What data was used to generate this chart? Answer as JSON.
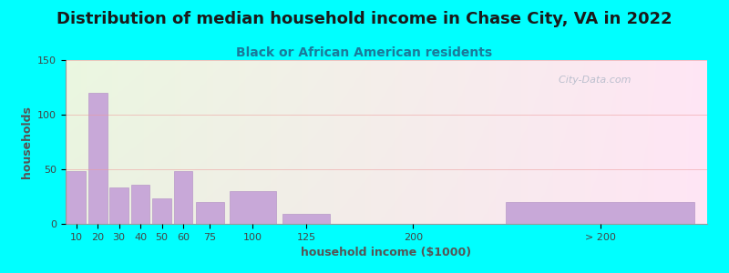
{
  "title": "Distribution of median household income in Chase City, VA in 2022",
  "subtitle": "Black or African American residents",
  "xlabel": "household income ($1000)",
  "ylabel": "households",
  "background_outer": "#00FFFF",
  "bar_color": "#c8a8d8",
  "bar_edge_color": "#b898c8",
  "title_fontsize": 13,
  "subtitle_fontsize": 10,
  "axis_label_fontsize": 9,
  "tick_fontsize": 8,
  "ylim": [
    0,
    150
  ],
  "yticks": [
    0,
    50,
    100,
    150
  ],
  "watermark": "  City-Data.com",
  "brackets": [
    [
      0,
      10,
      "10"
    ],
    [
      10,
      10,
      "20"
    ],
    [
      20,
      10,
      "30"
    ],
    [
      30,
      10,
      "40"
    ],
    [
      40,
      10,
      "50"
    ],
    [
      50,
      10,
      "60"
    ],
    [
      60,
      15,
      "75"
    ],
    [
      75,
      25,
      "100"
    ],
    [
      100,
      25,
      "125"
    ],
    [
      125,
      75,
      "200"
    ],
    [
      200,
      100,
      "> 200"
    ]
  ],
  "values": [
    48,
    120,
    33,
    36,
    23,
    48,
    20,
    30,
    9,
    0,
    20
  ]
}
